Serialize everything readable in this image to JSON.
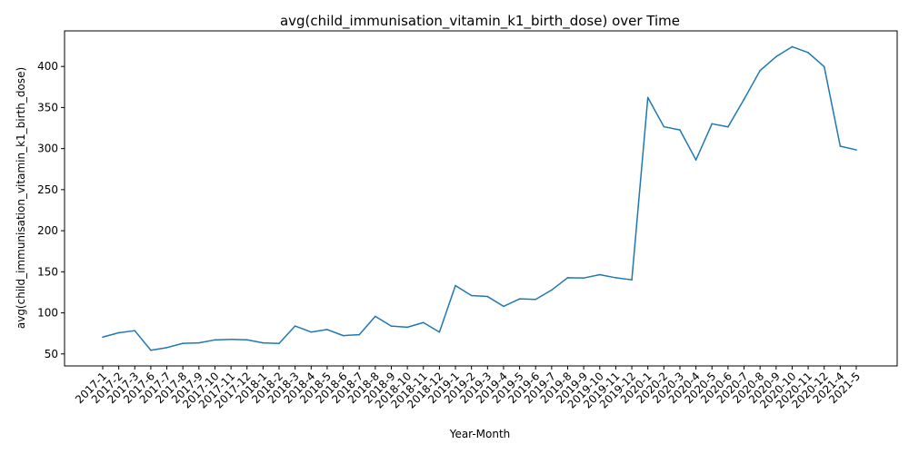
{
  "chart_data": {
    "type": "line",
    "title": "avg(child_immunisation_vitamin_k1_birth_dose) over Time",
    "xlabel": "Year-Month",
    "ylabel": "avg(child_immunisation_vitamin_k1_birth_dose)",
    "categories": [
      "2017-1",
      "2017-2",
      "2017-3",
      "2017-6",
      "2017-7",
      "2017-8",
      "2017-9",
      "2017-10",
      "2017-11",
      "2017-12",
      "2018-1",
      "2018-2",
      "2018-3",
      "2018-4",
      "2018-5",
      "2018-6",
      "2018-7",
      "2018-8",
      "2018-9",
      "2018-10",
      "2018-11",
      "2018-12",
      "2019-1",
      "2019-2",
      "2019-3",
      "2019-4",
      "2019-5",
      "2019-6",
      "2019-7",
      "2019-8",
      "2019-9",
      "2019-10",
      "2019-11",
      "2019-12",
      "2020-1",
      "2020-2",
      "2020-3",
      "2020-4",
      "2020-5",
      "2020-6",
      "2020-7",
      "2020-8",
      "2020-9",
      "2020-10",
      "2020-11",
      "2020-12",
      "2021-4",
      "2021-5"
    ],
    "series": [
      {
        "values": [
          70.5,
          75.8,
          78.3,
          54.5,
          57.7,
          62.9,
          63.5,
          67.1,
          67.8,
          67.2,
          63.5,
          62.8,
          84.0,
          76.6,
          79.7,
          72.3,
          73.4,
          95.8,
          83.9,
          82.5,
          88.2,
          76.6,
          133.2,
          121.1,
          119.9,
          107.9,
          117.0,
          116.4,
          127.8,
          142.8,
          142.4,
          146.5,
          142.7,
          140.2,
          362.2,
          326.6,
          322.7,
          286.2,
          330.2,
          326.4,
          360.0,
          395.0,
          411.9,
          424.0,
          416.8,
          399.7,
          302.9,
          298.4
        ],
        "color": "#1f77b4"
      }
    ],
    "yticks": [
      50,
      100,
      150,
      200,
      250,
      300,
      350,
      400
    ],
    "ylim": [
      35.4,
      443.3
    ],
    "grid": false,
    "legend": "none"
  }
}
